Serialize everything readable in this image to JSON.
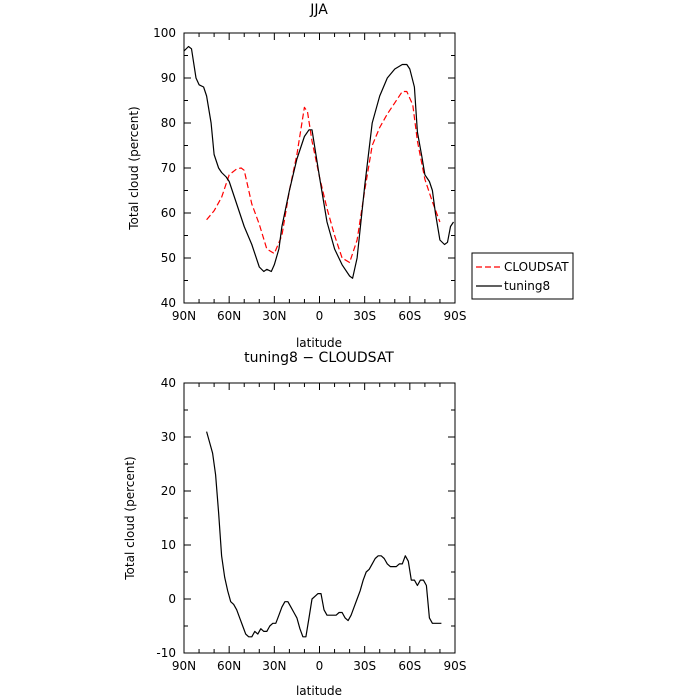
{
  "chart_data": [
    {
      "type": "line",
      "title": "JJA",
      "xlabel": "latitude",
      "ylabel": "Total cloud (percent)",
      "xlim": [
        -90,
        90
      ],
      "ylim": [
        40,
        100
      ],
      "x_ticks": [
        {
          "value": -90,
          "label": "90N"
        },
        {
          "value": -60,
          "label": "60N"
        },
        {
          "value": -30,
          "label": "30N"
        },
        {
          "value": 0,
          "label": "0"
        },
        {
          "value": 30,
          "label": "30S"
        },
        {
          "value": 60,
          "label": "60S"
        },
        {
          "value": 90,
          "label": "90S"
        }
      ],
      "y_ticks": [
        40,
        50,
        60,
        70,
        80,
        90,
        100
      ],
      "legend_position": "right",
      "series": [
        {
          "name": "CLOUDSAT",
          "color": "#ff0000",
          "dash": "dashed",
          "x": [
            -75,
            -70,
            -65,
            -60,
            -55,
            -52,
            -50,
            -45,
            -40,
            -35,
            -30,
            -25,
            -20,
            -15,
            -10,
            -8,
            -5,
            0,
            5,
            10,
            15,
            20,
            25,
            30,
            35,
            40,
            45,
            50,
            55,
            58,
            62,
            65,
            70,
            75,
            80
          ],
          "y": [
            58.5,
            60.5,
            63.5,
            68.5,
            69.8,
            70.0,
            69.5,
            62.0,
            57.5,
            52.0,
            51.0,
            55.0,
            65.0,
            73.0,
            83.5,
            82.5,
            76.0,
            68.0,
            61.0,
            55.0,
            50.0,
            49.0,
            54.0,
            65.0,
            75.0,
            79.0,
            82.0,
            84.5,
            87.0,
            87.0,
            84.0,
            76.0,
            67.5,
            62.5,
            58.0
          ]
        },
        {
          "name": "tuning8",
          "color": "#000000",
          "dash": "solid",
          "x": [
            -90,
            -87,
            -85,
            -82,
            -80,
            -77,
            -75,
            -72,
            -70,
            -67,
            -65,
            -62,
            -60,
            -57,
            -55,
            -50,
            -45,
            -40,
            -37,
            -35,
            -32,
            -30,
            -27,
            -25,
            -20,
            -15,
            -10,
            -7,
            -5,
            0,
            5,
            10,
            15,
            20,
            22,
            25,
            30,
            35,
            40,
            45,
            50,
            55,
            58,
            60,
            63,
            65,
            68,
            70,
            73,
            75,
            77,
            80,
            83,
            85,
            87,
            89
          ],
          "y": [
            96.0,
            97.0,
            96.5,
            90.0,
            88.5,
            88.0,
            86.0,
            80.0,
            73.0,
            70.0,
            69.0,
            68.0,
            67.0,
            64.0,
            62.0,
            57.0,
            53.0,
            48.0,
            47.0,
            47.5,
            47.0,
            48.5,
            52.0,
            57.0,
            65.0,
            72.0,
            77.0,
            78.5,
            78.5,
            68.0,
            58.0,
            52.0,
            48.5,
            46.0,
            45.5,
            50.0,
            66.0,
            80.0,
            86.0,
            90.0,
            92.0,
            93.0,
            93.0,
            92.0,
            88.0,
            78.0,
            72.5,
            68.5,
            67.0,
            65.0,
            60.0,
            54.0,
            53.0,
            53.5,
            57.0,
            58.0
          ]
        }
      ]
    },
    {
      "type": "line",
      "title": "tuning8 − CLOUDSAT",
      "xlabel": "latitude",
      "ylabel": "Total cloud (percent)",
      "xlim": [
        -90,
        90
      ],
      "ylim": [
        -10,
        40
      ],
      "x_ticks": [
        {
          "value": -90,
          "label": "90N"
        },
        {
          "value": -60,
          "label": "60N"
        },
        {
          "value": -30,
          "label": "30N"
        },
        {
          "value": 0,
          "label": "0"
        },
        {
          "value": 30,
          "label": "30S"
        },
        {
          "value": 60,
          "label": "60S"
        },
        {
          "value": 90,
          "label": "90S"
        }
      ],
      "y_ticks": [
        -10,
        0,
        10,
        20,
        30,
        40
      ],
      "series": [
        {
          "color": "#000000",
          "dash": "solid",
          "x": [
            -75,
            -73,
            -71,
            -69,
            -67,
            -65,
            -63,
            -61,
            -59,
            -57,
            -55,
            -53,
            -51,
            -49,
            -47,
            -45,
            -43,
            -41,
            -39,
            -37,
            -35,
            -33,
            -31,
            -29,
            -27,
            -25,
            -23,
            -21,
            -19,
            -17,
            -15,
            -13,
            -11,
            -9,
            -7,
            -5,
            -3,
            -1,
            1,
            3,
            5,
            7,
            9,
            11,
            13,
            15,
            17,
            19,
            21,
            23,
            25,
            27,
            29,
            31,
            33,
            35,
            37,
            39,
            41,
            43,
            45,
            47,
            49,
            51,
            53,
            55,
            57,
            59,
            61,
            63,
            65,
            67,
            69,
            71,
            73,
            75,
            77,
            79,
            81
          ],
          "y": [
            31.0,
            29.0,
            27.0,
            23.0,
            16.0,
            8.0,
            4.0,
            1.5,
            -0.5,
            -1.0,
            -2.0,
            -3.5,
            -5.0,
            -6.5,
            -7.0,
            -7.0,
            -6.0,
            -6.5,
            -5.5,
            -6.0,
            -6.0,
            -5.0,
            -4.5,
            -4.5,
            -3.0,
            -1.5,
            -0.5,
            -0.5,
            -1.5,
            -2.5,
            -3.5,
            -5.5,
            -7.0,
            -7.0,
            -3.5,
            0.0,
            0.5,
            1.0,
            1.0,
            -2.0,
            -3.0,
            -3.0,
            -3.0,
            -3.0,
            -2.5,
            -2.5,
            -3.5,
            -4.0,
            -3.0,
            -1.5,
            0.0,
            1.5,
            3.5,
            5.0,
            5.5,
            6.5,
            7.5,
            8.0,
            8.0,
            7.5,
            6.5,
            6.0,
            6.0,
            6.0,
            6.5,
            6.5,
            8.0,
            7.0,
            3.5,
            3.5,
            2.5,
            3.5,
            3.5,
            2.5,
            -3.5,
            -4.5,
            -4.5,
            -4.5,
            -4.5
          ]
        }
      ]
    }
  ]
}
